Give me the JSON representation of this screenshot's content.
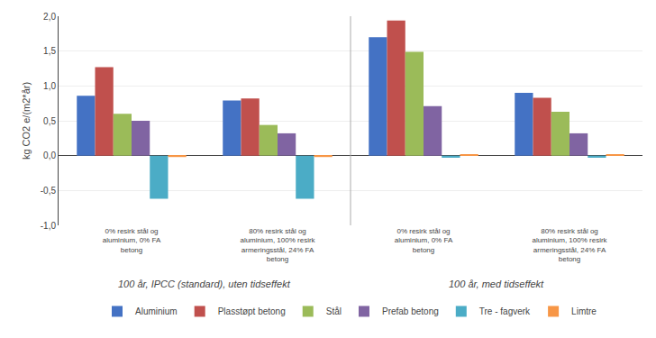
{
  "chart_data": {
    "type": "bar",
    "ylabel": "kg CO2 e/(m2*år)",
    "categories": [
      "0% resirk stål og\naluminium, 0% FA\nbetong",
      "80% resirk stål og\naluminium, 100% resirk\narmeringsstål, 24% FA\nbetong",
      "0% resirk stål og\naluminium, 0% FA\nbetong",
      "80% resirk stål og\naluminium, 100% resirk\narmeringsstål, 24% FA\nbetong"
    ],
    "annotations": [
      "100 år, IPCC (standard), uten tidseffekt",
      "100 år, med tidseffekt"
    ],
    "series": [
      {
        "name": "Aluminium",
        "color": "#4472C4",
        "values": [
          0.86,
          0.79,
          1.7,
          0.9
        ]
      },
      {
        "name": "Plasstøpt betong",
        "color": "#C0504D",
        "values": [
          1.27,
          0.82,
          1.94,
          0.83
        ]
      },
      {
        "name": "Stål",
        "color": "#9BBB59",
        "values": [
          0.6,
          0.44,
          1.49,
          0.63
        ]
      },
      {
        "name": "Prefab betong",
        "color": "#8064A2",
        "values": [
          0.5,
          0.32,
          0.71,
          0.32
        ]
      },
      {
        "name": "Tre - fagverk",
        "color": "#4BACC6",
        "values": [
          -0.62,
          -0.62,
          -0.03,
          -0.03
        ]
      },
      {
        "name": "Limtre",
        "color": "#F79646",
        "values": [
          -0.02,
          -0.02,
          0.02,
          0.02
        ]
      }
    ],
    "ylim": [
      -1.0,
      2.0
    ],
    "yticks": [
      {
        "value": -1.0,
        "label": "-1,0"
      },
      {
        "value": -0.5,
        "label": "-0,5"
      },
      {
        "value": 0.0,
        "label": "0,0"
      },
      {
        "value": 0.5,
        "label": "0,5"
      },
      {
        "value": 1.0,
        "label": "1,0"
      },
      {
        "value": 1.5,
        "label": "1,5"
      },
      {
        "value": 2.0,
        "label": "2,0"
      }
    ],
    "grid": true,
    "legend": "bottom"
  }
}
